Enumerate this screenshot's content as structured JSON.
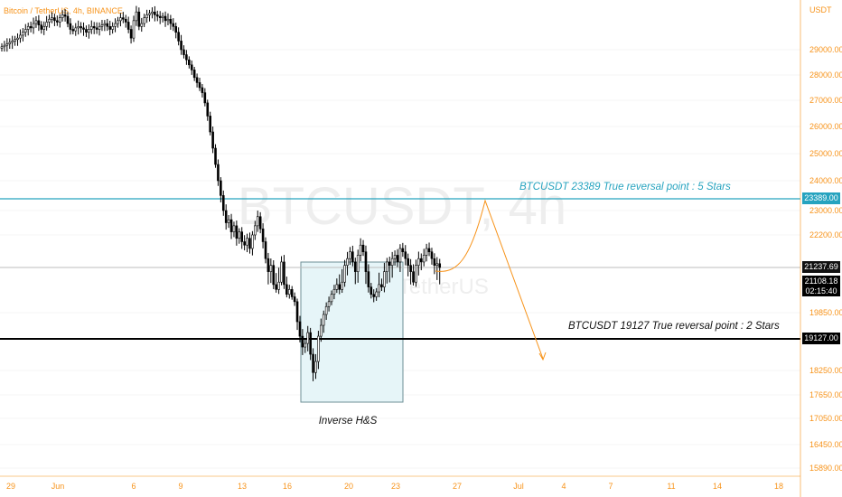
{
  "header": {
    "symbol_line": "Bitcoin / TetherUS, 4h, BINANCE"
  },
  "watermark": {
    "main": "BTCUSDT, 4h",
    "sub": "Bitcoin / TetherUS"
  },
  "axis": {
    "currency": "USDT"
  },
  "colors": {
    "up": "#3a3a3a",
    "down": "#000000",
    "orange": "#f7931a",
    "teal": "#26a3bf",
    "box_fill": "#e6f5f8",
    "box_stroke": "#6e8f96"
  },
  "chart_data": {
    "type": "candlestick",
    "title": "Bitcoin / TetherUS, 4h, BINANCE",
    "y_ticks": [
      29000,
      28000,
      27000,
      26000,
      25000,
      24000,
      23000,
      22200,
      19850,
      18250,
      17650,
      17050,
      16450,
      15890
    ],
    "y_tick_labels": [
      "29000.00",
      "28000.00",
      "27000.00",
      "26000.00",
      "25000.00",
      "24000.00",
      "23000.00",
      "22200.00",
      "19850.00",
      "18250.00",
      "17650.00",
      "17050.00",
      "16450.00",
      "15890.00"
    ],
    "x_tick_labels": [
      "29",
      "Jun",
      "6",
      "9",
      "13",
      "16",
      "20",
      "23",
      "27",
      "Jul",
      "4",
      "7",
      "11",
      "14",
      "18"
    ],
    "price_labels": [
      {
        "id": "resistance",
        "text": "23389.00",
        "value": 23389
      },
      {
        "id": "last",
        "text": "21237.69",
        "value": 21237.69
      },
      {
        "id": "current",
        "text": "21108.18",
        "sub": "02:15:40",
        "value": 21108.18
      },
      {
        "id": "support",
        "text": "19127.00",
        "value": 19127
      }
    ],
    "levels": [
      {
        "name": "resistance",
        "value": 23389,
        "label": "BTCUSDT 23389 True reversal point : 5 Stars"
      },
      {
        "name": "support",
        "value": 19127,
        "label": "BTCUSDT 19127 True reversal point : 2 Stars"
      }
    ],
    "pattern": {
      "label": "Inverse H&S"
    },
    "last_price": 21237.69,
    "closes": [
      29100,
      29150,
      29200,
      29250,
      29300,
      29350,
      29400,
      29500,
      29600,
      29700,
      29800,
      29750,
      29900,
      30000,
      29850,
      29700,
      29800,
      29950,
      30050,
      30100,
      30000,
      29950,
      30100,
      30200,
      30150,
      29900,
      29700,
      29650,
      29750,
      29800,
      29750,
      29700,
      29600,
      29700,
      29800,
      29750,
      29700,
      29800,
      29850,
      29900,
      29800,
      29700,
      29800,
      29900,
      30000,
      30100,
      30050,
      29950,
      29700,
      29400,
      30000,
      30300,
      29800,
      29900,
      30100,
      30200,
      30250,
      30300,
      30200,
      30150,
      30100,
      30150,
      30000,
      30050,
      29900,
      29800,
      29600,
      29300,
      29000,
      28800,
      28600,
      28400,
      28200,
      27900,
      27700,
      27500,
      27300,
      26900,
      26400,
      25800,
      25200,
      24600,
      24000,
      23500,
      23000,
      22600,
      22700,
      22300,
      22500,
      22100,
      22300,
      22000,
      21900,
      22100,
      21800,
      22200,
      22500,
      22800,
      22400,
      22000,
      21500,
      21200,
      21300,
      21000,
      20800,
      21100,
      21400,
      21000,
      20600,
      20800,
      20500,
      20300,
      19600,
      19200,
      18900,
      19000,
      19300,
      18700,
      18200,
      18500,
      19200,
      19500,
      19800,
      20100,
      20300,
      20600,
      20800,
      21000,
      20800,
      21100,
      21300,
      21500,
      21700,
      21400,
      21200,
      21600,
      21900,
      21700,
      21200,
      20900,
      20600,
      20500,
      20700,
      21000,
      20900,
      21200,
      21400,
      21300,
      21500,
      21600,
      21400,
      21800,
      21700,
      21500,
      21300,
      21200,
      21100,
      21300,
      21500,
      21400,
      21600,
      21800,
      21700,
      21500,
      21300,
      21350,
      21237.69
    ]
  }
}
